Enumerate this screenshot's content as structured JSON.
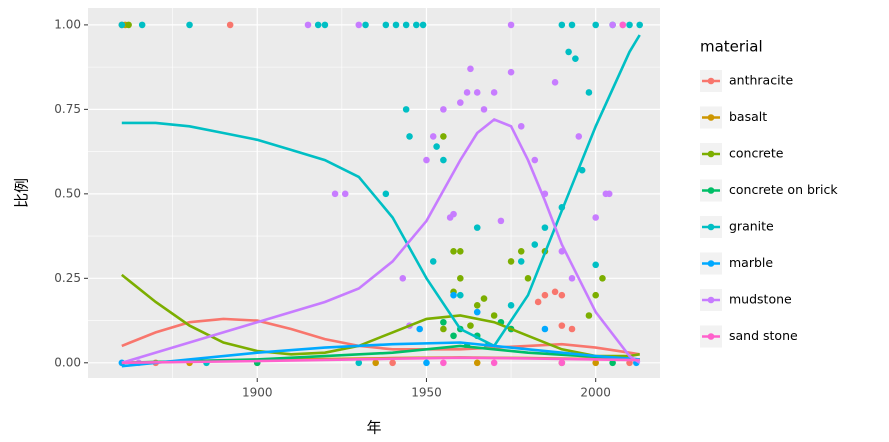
{
  "chart_data": {
    "type": "scatter",
    "xlabel": "年",
    "ylabel": "比例",
    "legend_title": "material",
    "xlim": [
      1850,
      2019
    ],
    "ylim": [
      -0.045,
      1.05
    ],
    "xticks": [
      1900,
      1950,
      2000
    ],
    "yticks": [
      {
        "value": 0,
        "label": "0.00"
      },
      {
        "value": 0.25,
        "label": "0.25"
      },
      {
        "value": 0.5,
        "label": "0.50"
      },
      {
        "value": 0.75,
        "label": "0.75"
      },
      {
        "value": 1,
        "label": "1.00"
      }
    ],
    "grid": true,
    "legend": "right",
    "series": [
      {
        "name": "anthracite",
        "color": "#F8766D",
        "x": [
          1860,
          1892,
          1870,
          1900,
          1940,
          1975,
          1983,
          1985,
          1988,
          1990,
          1990,
          1993,
          2010
        ],
        "values": [
          1,
          1,
          0,
          0,
          0,
          0.1,
          0.18,
          0.2,
          0.21,
          0.2,
          0.11,
          0.1,
          0
        ],
        "smooth": {
          "x": [
            1860,
            1870,
            1880,
            1890,
            1900,
            1910,
            1920,
            1930,
            1940,
            1950,
            1960,
            1970,
            1980,
            1990,
            2000,
            2010,
            2013
          ],
          "values": [
            0.05,
            0.09,
            0.12,
            0.13,
            0.125,
            0.1,
            0.07,
            0.05,
            0.04,
            0.04,
            0.04,
            0.045,
            0.05,
            0.055,
            0.045,
            0.03,
            0.025
          ]
        }
      },
      {
        "name": "basalt",
        "color": "#CD9600",
        "x": [
          1861,
          1880,
          1935,
          1965,
          2000
        ],
        "values": [
          1,
          0,
          0,
          0,
          0
        ],
        "smooth": {
          "x": [
            1860,
            1880,
            1900,
            1920,
            1940,
            1960,
            1980,
            2000,
            2013
          ],
          "values": [
            0,
            0.004,
            0.008,
            0.011,
            0.014,
            0.016,
            0.014,
            0.011,
            0.01
          ]
        }
      },
      {
        "name": "concrete",
        "color": "#7CAE00",
        "x": [
          1862,
          1955,
          1958,
          1960,
          1958,
          1960,
          1965,
          1967,
          1975,
          1978,
          1980,
          1985,
          1998,
          2000,
          2002,
          1970,
          1963,
          1955,
          1990
        ],
        "values": [
          1,
          0.67,
          0.33,
          0.33,
          0.21,
          0.25,
          0.17,
          0.19,
          0.3,
          0.33,
          0.25,
          0.33,
          0.14,
          0.2,
          0.25,
          0.14,
          0.11,
          0.1,
          0
        ],
        "smooth": {
          "x": [
            1860,
            1870,
            1880,
            1890,
            1900,
            1910,
            1920,
            1930,
            1940,
            1950,
            1960,
            1970,
            1980,
            1990,
            2000,
            2010,
            2013
          ],
          "values": [
            0.26,
            0.18,
            0.11,
            0.06,
            0.035,
            0.025,
            0.03,
            0.05,
            0.09,
            0.13,
            0.14,
            0.12,
            0.08,
            0.04,
            0.02,
            0.02,
            0.025
          ]
        }
      },
      {
        "name": "concrete on brick",
        "color": "#00BE67",
        "x": [
          1955,
          1958,
          1960,
          1962,
          1965,
          1968,
          1972,
          1975,
          1900,
          2005
        ],
        "values": [
          0.12,
          0.08,
          0.1,
          0.05,
          0.08,
          0.05,
          0.12,
          0.1,
          0,
          0
        ],
        "smooth": {
          "x": [
            1860,
            1900,
            1940,
            1960,
            1980,
            2013
          ],
          "values": [
            0,
            0.01,
            0.03,
            0.05,
            0.03,
            0.01
          ]
        }
      },
      {
        "name": "granite",
        "color": "#00BFC4",
        "x": [
          1860,
          1866,
          1880,
          1918,
          1920,
          1932,
          1938,
          1941,
          1944,
          1947,
          1949,
          1990,
          1993,
          2000,
          2005,
          2010,
          2013,
          1938,
          1944,
          1945,
          1953,
          1955,
          1965,
          1982,
          1985,
          1990,
          1992,
          1994,
          1996,
          1998,
          2000,
          1975,
          1978,
          1960,
          1952,
          1885,
          1930
        ],
        "values": [
          1,
          1,
          1,
          1,
          1,
          1,
          1,
          1,
          1,
          1,
          1,
          1,
          1,
          1,
          1,
          1,
          1,
          0.5,
          0.75,
          0.67,
          0.64,
          0.6,
          0.4,
          0.35,
          0.4,
          0.46,
          0.92,
          0.9,
          0.57,
          0.8,
          0.29,
          0.17,
          0.3,
          0.2,
          0.3,
          0,
          0
        ],
        "smooth": {
          "x": [
            1860,
            1870,
            1880,
            1890,
            1900,
            1910,
            1920,
            1930,
            1940,
            1950,
            1960,
            1970,
            1980,
            1990,
            2000,
            2010,
            2013
          ],
          "values": [
            0.71,
            0.71,
            0.7,
            0.68,
            0.66,
            0.63,
            0.6,
            0.55,
            0.43,
            0.25,
            0.1,
            0.05,
            0.2,
            0.45,
            0.7,
            0.92,
            0.97
          ]
        }
      },
      {
        "name": "marble",
        "color": "#00A9FF",
        "x": [
          1958,
          1965,
          1948,
          1985,
          1860,
          1950,
          2012
        ],
        "values": [
          0.2,
          0.15,
          0.1,
          0.1,
          0,
          0,
          0
        ],
        "smooth": {
          "x": [
            1860,
            1880,
            1900,
            1920,
            1940,
            1960,
            1980,
            2000,
            2013
          ],
          "values": [
            -0.01,
            0.01,
            0.03,
            0.045,
            0.055,
            0.06,
            0.04,
            0.02,
            0.01
          ]
        }
      },
      {
        "name": "mudstone",
        "color": "#C77CFF",
        "x": [
          1915,
          1930,
          1975,
          2005,
          2008,
          1923,
          1926,
          1945,
          1950,
          1952,
          1955,
          1957,
          1958,
          1960,
          1962,
          1963,
          1965,
          1967,
          1970,
          1972,
          1975,
          1978,
          1982,
          1985,
          1988,
          1990,
          1993,
          1995,
          2000,
          2003,
          2004,
          1943,
          1865
        ],
        "values": [
          1,
          1,
          1,
          1,
          1,
          0.5,
          0.5,
          0.11,
          0.6,
          0.67,
          0.75,
          0.43,
          0.44,
          0.77,
          0.8,
          0.87,
          0.8,
          0.75,
          0.8,
          0.42,
          0.86,
          0.7,
          0.6,
          0.5,
          0.83,
          0.33,
          0.25,
          0.67,
          0.43,
          0.5,
          0.5,
          0.25,
          0
        ],
        "smooth": {
          "x": [
            1860,
            1880,
            1900,
            1920,
            1930,
            1940,
            1950,
            1960,
            1965,
            1970,
            1975,
            1980,
            1985,
            1990,
            2000,
            2010,
            2013
          ],
          "values": [
            0,
            0.06,
            0.12,
            0.18,
            0.22,
            0.3,
            0.42,
            0.6,
            0.68,
            0.72,
            0.7,
            0.6,
            0.48,
            0.35,
            0.15,
            0.02,
            0
          ]
        }
      },
      {
        "name": "sand stone",
        "color": "#FF61CC",
        "x": [
          2008,
          1955,
          1970,
          1990
        ],
        "values": [
          1,
          0,
          0,
          0
        ],
        "smooth": {
          "x": [
            1860,
            1900,
            1940,
            1960,
            1980,
            2000,
            2013
          ],
          "values": [
            0,
            0.005,
            0.012,
            0.015,
            0.013,
            0.01,
            0.008
          ]
        }
      }
    ]
  }
}
